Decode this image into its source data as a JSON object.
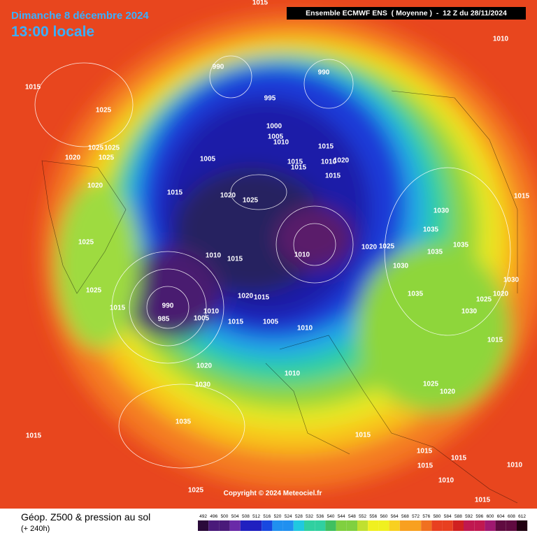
{
  "header": {
    "date": "Dimanche 8 décembre 2024",
    "time": "13:00 locale",
    "model": "Ensemble ECMWF ENS  ( Moyenne )  -  12 Z du 28/11/2024"
  },
  "map": {
    "isobar_labels": [
      "1015",
      "1010",
      "990",
      "990",
      "1015",
      "995",
      "1025",
      "1000",
      "1005",
      "1010",
      "1025",
      "1025",
      "1015",
      "1020",
      "1025",
      "1005",
      "1015",
      "1015",
      "1010",
      "1020",
      "1015",
      "1020",
      "1020",
      "1025",
      "1015",
      "1015",
      "1030",
      "1035",
      "1035",
      "1020",
      "1025",
      "1010",
      "1010",
      "1015",
      "1030",
      "1035",
      "1025",
      "1025",
      "1035",
      "1020",
      "1015",
      "1030",
      "1020",
      "1025",
      "990",
      "1015",
      "1010",
      "985",
      "1005",
      "1015",
      "1005",
      "1010",
      "1030",
      "1015",
      "1020",
      "1010",
      "1030",
      "1025",
      "1020",
      "1035",
      "1015",
      "1015",
      "1015",
      "1015",
      "1010",
      "1015",
      "1025",
      "1010",
      "1015"
    ],
    "copyright": "Copyright © 2024 Meteociel.fr"
  },
  "footer": {
    "title": "Géop. Z500 & pression au sol",
    "lead": "(+ 240h)",
    "scale": [
      492,
      496,
      500,
      504,
      508,
      512,
      516,
      520,
      524,
      528,
      532,
      536,
      540,
      544,
      548,
      552,
      556,
      560,
      564,
      568,
      572,
      576,
      580,
      584,
      588,
      592,
      596,
      600,
      604,
      608,
      612
    ]
  }
}
